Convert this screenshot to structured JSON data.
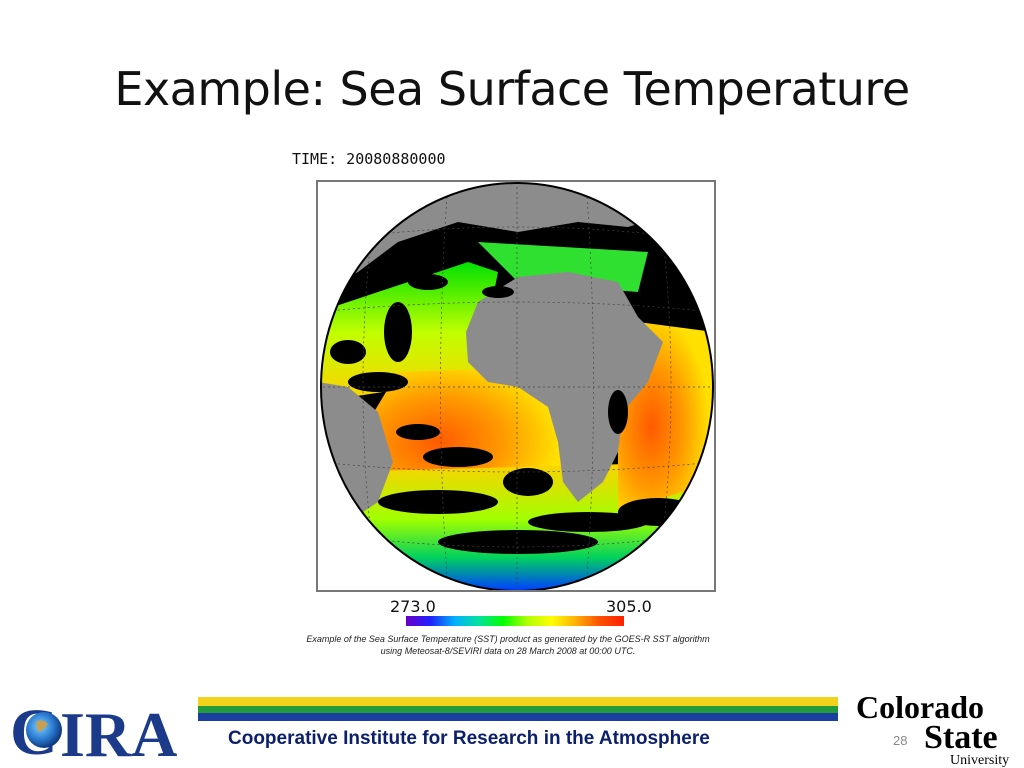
{
  "slide": {
    "title": "Example: Sea Surface Temperature",
    "page_number": "28"
  },
  "figure": {
    "time_label": "TIME: 20080880000",
    "scale_min": "273.0",
    "scale_max": "305.0",
    "caption_line1": "Example of the Sea Surface Temperature (SST) product as generated by the GOES-R SST algorithm",
    "caption_line2": "using Meteosat-8/SEVIRI data on 28 March 2008 at 00:00 UTC."
  },
  "footer": {
    "institute_text": "Cooperative Institute for Research in the Atmosphere",
    "left_logo_text": "CIRA",
    "right_logo_text": [
      "Colorado",
      "State",
      "University"
    ]
  },
  "colors": {
    "footer_yellow": "#f2d21a",
    "footer_green": "#239b3a",
    "footer_blue": "#1b3fa0",
    "footer_text": "#0b1f6b",
    "land": "#8c8c8c",
    "clouds": "#000000"
  }
}
